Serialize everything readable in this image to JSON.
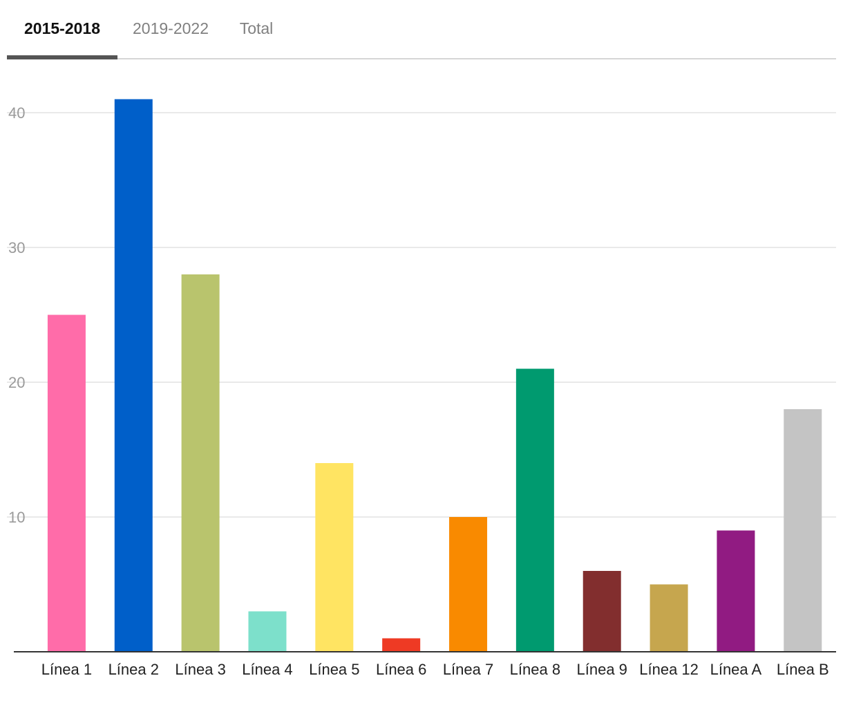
{
  "tabs": [
    {
      "label": "2015-2018",
      "active": true
    },
    {
      "label": "2019-2022",
      "active": false
    },
    {
      "label": "Total",
      "active": false
    }
  ],
  "chart_data": {
    "type": "bar",
    "title": "",
    "xlabel": "",
    "ylabel": "",
    "ylim": [
      0,
      41
    ],
    "yticks": [
      10,
      20,
      30,
      40
    ],
    "grid": true,
    "legend": "none",
    "categories": [
      "Línea 1",
      "Línea 2",
      "Línea 3",
      "Línea 4",
      "Línea 5",
      "Línea 6",
      "Línea 7",
      "Línea 8",
      "Línea 9",
      "Línea 12",
      "Línea A",
      "Línea B"
    ],
    "values": [
      25,
      41,
      28,
      3,
      14,
      1,
      10,
      21,
      6,
      5,
      9,
      18
    ],
    "colors": [
      "#ff6ca9",
      "#005fc9",
      "#b9c46d",
      "#7de0cb",
      "#ffe462",
      "#ee3a24",
      "#f98a00",
      "#009a6f",
      "#822e2e",
      "#c6a64e",
      "#911b82",
      "#c4c4c4"
    ]
  }
}
